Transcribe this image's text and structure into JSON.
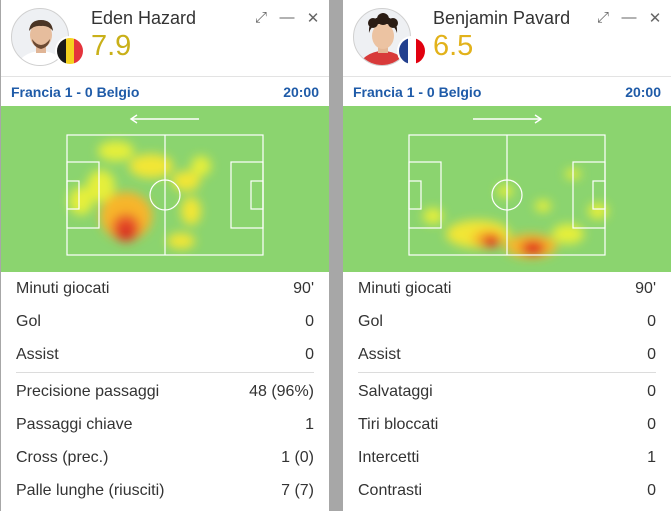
{
  "cards": [
    {
      "player": {
        "name": "Eden Hazard",
        "rating": "7.9",
        "rating_color": "#c9b019",
        "flag_colors": [
          "#1a1a1a",
          "#f5d21f",
          "#e4343c"
        ]
      },
      "controls": [
        "expand-icon",
        "minimize-icon",
        "close-icon"
      ],
      "match": {
        "label": "Francia 1 - 0 Belgio",
        "time": "20:00"
      },
      "heatmap": {
        "direction": "left"
      },
      "stats_main": [
        {
          "label": "Minuti giocati",
          "value": "90'"
        },
        {
          "label": "Gol",
          "value": "0"
        },
        {
          "label": "Assist",
          "value": "0"
        }
      ],
      "stats_extra": [
        {
          "label": "Precisione passaggi",
          "value": "48 (96%)"
        },
        {
          "label": "Passaggi chiave",
          "value": "1"
        },
        {
          "label": "Cross (prec.)",
          "value": "1 (0)"
        },
        {
          "label": "Palle lunghe (riusciti)",
          "value": "7 (7)"
        }
      ]
    },
    {
      "player": {
        "name": "Benjamin Pavard",
        "rating": "6.5",
        "rating_color": "#e2b21b",
        "flag_colors": [
          "#23408e",
          "#ffffff",
          "#e1000f"
        ]
      },
      "controls": [
        "expand-icon",
        "minimize-icon",
        "close-icon"
      ],
      "match": {
        "label": "Francia 1 - 0 Belgio",
        "time": "20:00"
      },
      "heatmap": {
        "direction": "right"
      },
      "stats_main": [
        {
          "label": "Minuti giocati",
          "value": "90'"
        },
        {
          "label": "Gol",
          "value": "0"
        },
        {
          "label": "Assist",
          "value": "0"
        }
      ],
      "stats_extra": [
        {
          "label": "Salvataggi",
          "value": "0"
        },
        {
          "label": "Tiri bloccati",
          "value": "0"
        },
        {
          "label": "Intercetti",
          "value": "1"
        },
        {
          "label": "Contrasti",
          "value": "0"
        }
      ]
    }
  ]
}
